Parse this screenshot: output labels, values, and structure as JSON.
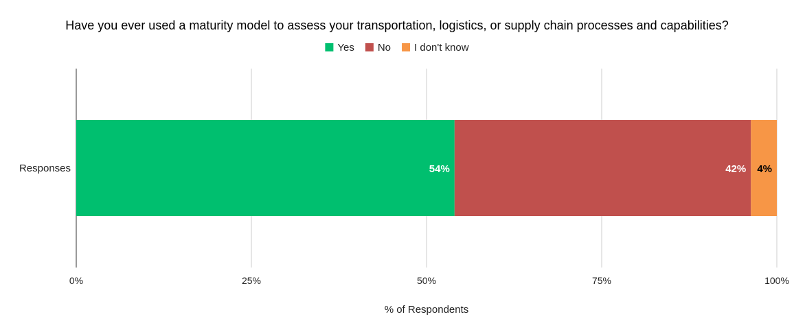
{
  "chart_data": {
    "type": "bar",
    "orientation": "horizontal",
    "stacked": "percent",
    "title": "Have you ever used a maturity model to assess your transportation, logistics, or supply chain processes and capabilities?",
    "xlabel": "% of Respondents",
    "ylabel": "",
    "categories": [
      "Responses"
    ],
    "xlim": [
      0,
      100
    ],
    "x_ticks": [
      "0%",
      "25%",
      "50%",
      "75%",
      "100%"
    ],
    "legend_position": "top",
    "grid": true,
    "series": [
      {
        "name": "Yes",
        "values": [
          54
        ],
        "color": "#00bf6f",
        "label": "54%",
        "label_color": "#ffffff"
      },
      {
        "name": "No",
        "values": [
          42.3
        ],
        "color": "#c0504d",
        "label": "42%",
        "label_color": "#ffffff"
      },
      {
        "name": "I don't know",
        "values": [
          3.7
        ],
        "color": "#f79646",
        "label": "4%",
        "label_color": "#000000"
      }
    ]
  }
}
